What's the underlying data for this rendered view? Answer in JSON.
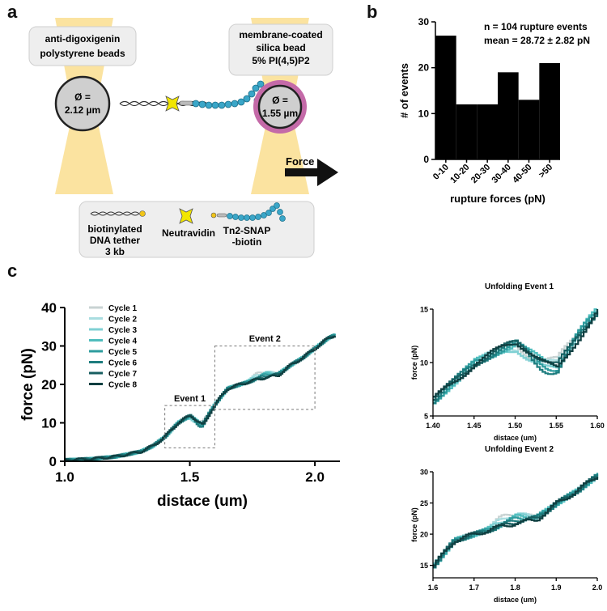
{
  "panels": {
    "a": "a",
    "b": "b",
    "c": "c"
  },
  "panel_a": {
    "left_bead_label": [
      "anti-digoxigenin",
      "polystyrene beads"
    ],
    "right_bead_label": [
      "membrane-coated",
      "silica bead",
      "5% PI(4,5)P2"
    ],
    "left_bead_diameter": [
      "Ø =",
      "2.12 µm"
    ],
    "right_bead_diameter": [
      "Ø =",
      "1.55 µm"
    ],
    "force_label": "Force",
    "legend": {
      "dna": [
        "biotinylated",
        "DNA tether",
        "3 kb"
      ],
      "neutravidin": "Neutravidin",
      "protein": [
        "Tn2-SNAP",
        "-biotin"
      ]
    },
    "colors": {
      "trap": "#fbe3a0",
      "bead": "#cfcfcf",
      "membrane": "#c46aa8",
      "protein": "#3aa6c8",
      "neutravidin": "#f2e600",
      "biotin": "#f0c419",
      "legend_box": "#eeeeee"
    }
  },
  "panel_b_chart": {
    "type": "bar",
    "categories": [
      "0-10",
      "10-20",
      "20-30",
      "30-40",
      "40-50",
      ">50"
    ],
    "values": [
      27,
      12,
      12,
      19,
      13,
      21
    ],
    "ylim": [
      0,
      30
    ],
    "yticks": [
      "0",
      "10",
      "20",
      "30"
    ],
    "xlabel": "rupture forces (pN)",
    "ylabel": "# of events",
    "annotation": [
      "n = 104 rupture events",
      "mean = 28.72 ± 2.82 pN"
    ]
  },
  "chart_data": [
    {
      "type": "line",
      "title": "",
      "xlabel": "distace (um)",
      "ylabel": "force (pN)",
      "xlim": [
        1.0,
        2.1
      ],
      "ylim": [
        0,
        40
      ],
      "xticks": [
        "1.0",
        "1.5",
        "2.0"
      ],
      "yticks": [
        "0",
        "10",
        "20",
        "30",
        "40"
      ],
      "legend": [
        "Cycle 1",
        "Cycle 2",
        "Cycle 3",
        "Cycle 4",
        "Cycle 5",
        "Cycle 6",
        "Cycle 7",
        "Cycle 8"
      ],
      "colors": [
        "#c8d3d3",
        "#a9dde0",
        "#7fd0d3",
        "#4fbdbd",
        "#2e9c9e",
        "#1d7c7e",
        "#175e60",
        "#0f3f41"
      ],
      "annotations": [
        "Event 1",
        "Event 2"
      ],
      "series_template": {
        "x": [
          1.0,
          1.1,
          1.2,
          1.3,
          1.35,
          1.4,
          1.45,
          1.5,
          1.55,
          1.6,
          1.65,
          1.7,
          1.75,
          1.8,
          1.85,
          1.9,
          1.95,
          2.0,
          2.05,
          2.1
        ],
        "y": [
          0.3,
          0.6,
          1.2,
          2.5,
          4.0,
          6.5,
          10.0,
          12.0,
          10.5,
          15.0,
          19.0,
          20.0,
          21.0,
          22.0,
          22.5,
          25.0,
          27.0,
          29.5,
          32.0,
          33.5
        ]
      }
    },
    {
      "type": "line",
      "title": "Unfolding Event 1",
      "xlabel": "distace (um)",
      "ylabel": "force (pN)",
      "xlim": [
        1.4,
        1.6
      ],
      "ylim": [
        5,
        15
      ],
      "xticks": [
        "1.40",
        "1.45",
        "1.50",
        "1.55",
        "1.60"
      ],
      "yticks": [
        "5",
        "10",
        "15"
      ]
    },
    {
      "type": "line",
      "title": "Unfolding Event 2",
      "xlabel": "distace (um)",
      "ylabel": "force (pN)",
      "xlim": [
        1.6,
        2.0
      ],
      "ylim": [
        13,
        30
      ],
      "xticks": [
        "1.6",
        "1.7",
        "1.8",
        "1.9",
        "2.0"
      ],
      "yticks": [
        "15",
        "20",
        "25",
        "30"
      ]
    }
  ]
}
